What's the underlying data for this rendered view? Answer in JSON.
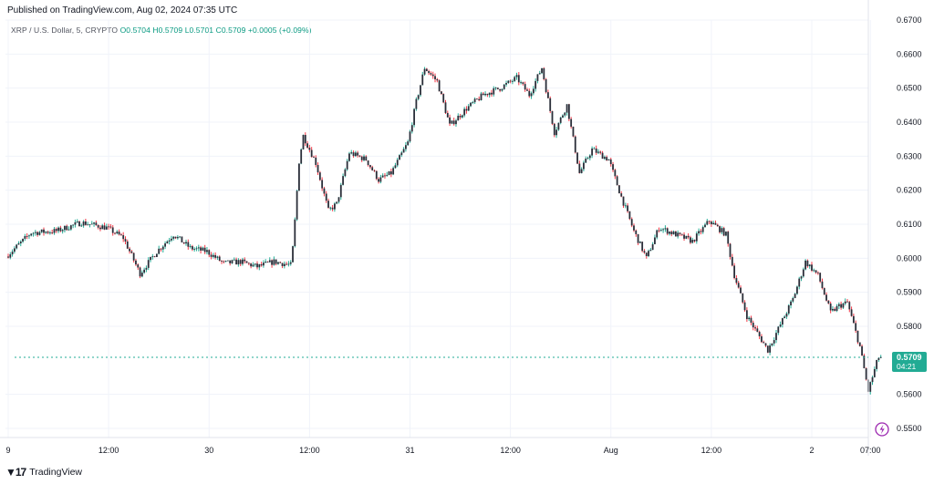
{
  "header": {
    "published": "Published on TradingView.com, Aug 02, 2024 07:35 UTC"
  },
  "legend": {
    "symbol": "XRP / U.S. Dollar, 5, CRYPTO",
    "open": "O0.5704",
    "high": "H0.5709",
    "low": "L0.5701",
    "close": "C0.5709",
    "change": "+0.0005 (+0.09%)"
  },
  "price_tag": {
    "price": "0.5709",
    "countdown": "04:21",
    "color": "#22ab94"
  },
  "brand": {
    "label": "TradingView"
  },
  "icons": {
    "logo": "tradingview-logo-icon",
    "lightning": "lightning-icon"
  },
  "colors": {
    "up": "#22ab94",
    "down": "#f23645",
    "candle_body": "#2a2e39",
    "grid": "#f0f3fa",
    "last_price_line": "#22ab94"
  },
  "chart_data": {
    "type": "candlestick",
    "ylim": [
      0.55,
      0.67
    ],
    "y_ticks": [
      "0.6700",
      "0.6600",
      "0.6500",
      "0.6400",
      "0.6300",
      "0.6200",
      "0.6100",
      "0.6000",
      "0.5900",
      "0.5800",
      "0.5600",
      "0.5500"
    ],
    "y_tick_values": [
      0.67,
      0.66,
      0.65,
      0.64,
      0.63,
      0.62,
      0.61,
      0.6,
      0.59,
      0.58,
      0.56,
      0.55
    ],
    "x_ticks": [
      "9",
      "12:00",
      "30",
      "12:00",
      "31",
      "12:00",
      "Aug",
      "12:00",
      "2",
      "07:00"
    ],
    "x_tick_times": [
      0,
      12,
      24,
      36,
      48,
      60,
      72,
      84,
      96,
      103
    ],
    "x_range_hours": [
      0,
      104.5
    ],
    "last_price": 0.5709,
    "price_path": [
      [
        0,
        0.6005
      ],
      [
        3,
        0.6075
      ],
      [
        6,
        0.608
      ],
      [
        9,
        0.6105
      ],
      [
        12,
        0.609
      ],
      [
        14,
        0.606
      ],
      [
        16,
        0.5955
      ],
      [
        18,
        0.602
      ],
      [
        20,
        0.607
      ],
      [
        22,
        0.603
      ],
      [
        24,
        0.602
      ],
      [
        26,
        0.5985
      ],
      [
        28,
        0.599
      ],
      [
        30,
        0.5975
      ],
      [
        32,
        0.599
      ],
      [
        34,
        0.598
      ],
      [
        34.3,
        0.604
      ],
      [
        35,
        0.6285
      ],
      [
        35.5,
        0.636
      ],
      [
        37,
        0.628
      ],
      [
        38.5,
        0.614
      ],
      [
        39.5,
        0.616
      ],
      [
        41,
        0.631
      ],
      [
        43,
        0.629
      ],
      [
        44.5,
        0.623
      ],
      [
        46,
        0.625
      ],
      [
        48,
        0.634
      ],
      [
        49,
        0.646
      ],
      [
        50,
        0.656
      ],
      [
        51.5,
        0.652
      ],
      [
        53,
        0.639
      ],
      [
        55,
        0.644
      ],
      [
        57,
        0.648
      ],
      [
        59,
        0.65
      ],
      [
        61,
        0.653
      ],
      [
        62.5,
        0.648
      ],
      [
        64,
        0.656
      ],
      [
        65.5,
        0.637
      ],
      [
        67,
        0.645
      ],
      [
        68.5,
        0.625
      ],
      [
        70,
        0.632
      ],
      [
        72,
        0.629
      ],
      [
        73.5,
        0.618
      ],
      [
        75,
        0.608
      ],
      [
        76.5,
        0.6
      ],
      [
        78,
        0.609
      ],
      [
        80,
        0.607
      ],
      [
        82,
        0.605
      ],
      [
        84,
        0.611
      ],
      [
        86,
        0.607
      ],
      [
        87,
        0.595
      ],
      [
        88.5,
        0.583
      ],
      [
        90,
        0.577
      ],
      [
        91,
        0.573
      ],
      [
        92,
        0.578
      ],
      [
        94,
        0.588
      ],
      [
        95.5,
        0.599
      ],
      [
        97,
        0.595
      ],
      [
        98.5,
        0.584
      ],
      [
        99.5,
        0.586
      ],
      [
        100.5,
        0.587
      ],
      [
        102,
        0.574
      ],
      [
        103,
        0.561
      ],
      [
        104.2,
        0.5709
      ]
    ]
  }
}
